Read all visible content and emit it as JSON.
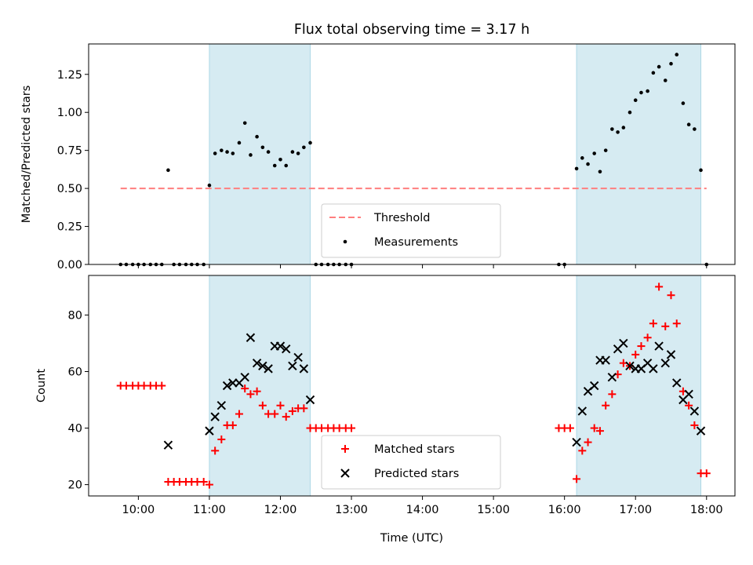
{
  "figure": {
    "title": "Flux total observing time = 3.17 h",
    "xlabel": "Time (UTC)",
    "colors": {
      "span": "#add8e6",
      "threshold": "#ff7f7f",
      "measurements": "#000000",
      "matched": "#ff0000",
      "predicted": "#000000"
    }
  },
  "chart_data": [
    {
      "type": "scatter",
      "title": "Flux total observing time = 3.17 h",
      "xlabel": "",
      "ylabel": "Matched/Predicted stars",
      "x_unit": "hours UTC",
      "xlim": [
        9.3,
        18.4
      ],
      "ylim": [
        0,
        1.45
      ],
      "yticks": [
        0.0,
        0.25,
        0.5,
        0.75,
        1.0,
        1.25
      ],
      "ytick_labels": [
        "0.00",
        "0.25",
        "0.50",
        "0.75",
        "1.00",
        "1.25"
      ],
      "xticks": [
        10,
        11,
        12,
        13,
        14,
        15,
        16,
        17,
        18
      ],
      "xtick_labels": [],
      "legend_placement": "lower-center",
      "shaded_spans": [
        [
          11.0,
          12.42
        ],
        [
          16.17,
          17.92
        ]
      ],
      "threshold": {
        "name": "Threshold",
        "y": 0.5,
        "x_range": [
          9.75,
          18.0
        ]
      },
      "series": [
        {
          "name": "Measurements",
          "points": [
            [
              9.75,
              0
            ],
            [
              9.83,
              0
            ],
            [
              9.92,
              0
            ],
            [
              10.0,
              0
            ],
            [
              10.08,
              0
            ],
            [
              10.17,
              0
            ],
            [
              10.25,
              0
            ],
            [
              10.33,
              0
            ],
            [
              10.42,
              0.62
            ],
            [
              10.5,
              0
            ],
            [
              10.58,
              0
            ],
            [
              10.67,
              0
            ],
            [
              10.75,
              0
            ],
            [
              10.83,
              0
            ],
            [
              10.92,
              0
            ],
            [
              11.0,
              0.52
            ],
            [
              11.08,
              0.73
            ],
            [
              11.17,
              0.75
            ],
            [
              11.25,
              0.74
            ],
            [
              11.33,
              0.73
            ],
            [
              11.42,
              0.8
            ],
            [
              11.5,
              0.93
            ],
            [
              11.58,
              0.72
            ],
            [
              11.67,
              0.84
            ],
            [
              11.75,
              0.77
            ],
            [
              11.83,
              0.74
            ],
            [
              11.92,
              0.65
            ],
            [
              12.0,
              0.69
            ],
            [
              12.08,
              0.65
            ],
            [
              12.17,
              0.74
            ],
            [
              12.25,
              0.73
            ],
            [
              12.33,
              0.77
            ],
            [
              12.42,
              0.8
            ],
            [
              12.5,
              0
            ],
            [
              12.58,
              0
            ],
            [
              12.67,
              0
            ],
            [
              12.75,
              0
            ],
            [
              12.83,
              0
            ],
            [
              12.92,
              0
            ],
            [
              13.0,
              0
            ],
            [
              15.92,
              0
            ],
            [
              16.0,
              0
            ],
            [
              16.17,
              0.63
            ],
            [
              16.25,
              0.7
            ],
            [
              16.33,
              0.66
            ],
            [
              16.42,
              0.73
            ],
            [
              16.5,
              0.61
            ],
            [
              16.58,
              0.75
            ],
            [
              16.67,
              0.89
            ],
            [
              16.75,
              0.87
            ],
            [
              16.83,
              0.9
            ],
            [
              16.92,
              1.0
            ],
            [
              17.0,
              1.08
            ],
            [
              17.08,
              1.13
            ],
            [
              17.17,
              1.14
            ],
            [
              17.25,
              1.26
            ],
            [
              17.33,
              1.3
            ],
            [
              17.42,
              1.21
            ],
            [
              17.5,
              1.32
            ],
            [
              17.58,
              1.38
            ],
            [
              17.67,
              1.06
            ],
            [
              17.75,
              0.92
            ],
            [
              17.83,
              0.89
            ],
            [
              17.92,
              0.62
            ],
            [
              18.0,
              0
            ]
          ]
        }
      ]
    },
    {
      "type": "scatter",
      "title": "",
      "xlabel": "Time (UTC)",
      "ylabel": "Count",
      "x_unit": "hours UTC",
      "xlim": [
        9.3,
        18.4
      ],
      "ylim": [
        16,
        94
      ],
      "yticks": [
        20,
        40,
        60,
        80
      ],
      "ytick_labels": [
        "20",
        "40",
        "60",
        "80"
      ],
      "xticks": [
        10,
        11,
        12,
        13,
        14,
        15,
        16,
        17,
        18
      ],
      "xtick_labels": [
        "10:00",
        "11:00",
        "12:00",
        "13:00",
        "14:00",
        "15:00",
        "16:00",
        "17:00",
        "18:00"
      ],
      "legend_placement": "lower-center",
      "shaded_spans": [
        [
          11.0,
          12.42
        ],
        [
          16.17,
          17.92
        ]
      ],
      "series": [
        {
          "name": "Matched stars",
          "marker": "plus",
          "points": [
            [
              9.75,
              55
            ],
            [
              9.83,
              55
            ],
            [
              9.92,
              55
            ],
            [
              10.0,
              55
            ],
            [
              10.08,
              55
            ],
            [
              10.17,
              55
            ],
            [
              10.25,
              55
            ],
            [
              10.33,
              55
            ],
            [
              10.42,
              21
            ],
            [
              10.5,
              21
            ],
            [
              10.58,
              21
            ],
            [
              10.67,
              21
            ],
            [
              10.75,
              21
            ],
            [
              10.83,
              21
            ],
            [
              10.92,
              21
            ],
            [
              11.0,
              20
            ],
            [
              11.08,
              32
            ],
            [
              11.17,
              36
            ],
            [
              11.25,
              41
            ],
            [
              11.33,
              41
            ],
            [
              11.42,
              45
            ],
            [
              11.5,
              54
            ],
            [
              11.58,
              52
            ],
            [
              11.67,
              53
            ],
            [
              11.75,
              48
            ],
            [
              11.83,
              45
            ],
            [
              11.92,
              45
            ],
            [
              12.0,
              48
            ],
            [
              12.08,
              44
            ],
            [
              12.17,
              46
            ],
            [
              12.25,
              47
            ],
            [
              12.33,
              47
            ],
            [
              12.42,
              40
            ],
            [
              12.5,
              40
            ],
            [
              12.58,
              40
            ],
            [
              12.67,
              40
            ],
            [
              12.75,
              40
            ],
            [
              12.83,
              40
            ],
            [
              12.92,
              40
            ],
            [
              13.0,
              40
            ],
            [
              15.92,
              40
            ],
            [
              16.0,
              40
            ],
            [
              16.08,
              40
            ],
            [
              16.17,
              22
            ],
            [
              16.25,
              32
            ],
            [
              16.33,
              35
            ],
            [
              16.42,
              40
            ],
            [
              16.5,
              39
            ],
            [
              16.58,
              48
            ],
            [
              16.67,
              52
            ],
            [
              16.75,
              59
            ],
            [
              16.83,
              63
            ],
            [
              16.92,
              62
            ],
            [
              17.0,
              66
            ],
            [
              17.08,
              69
            ],
            [
              17.17,
              72
            ],
            [
              17.25,
              77
            ],
            [
              17.33,
              90
            ],
            [
              17.42,
              76
            ],
            [
              17.5,
              87
            ],
            [
              17.58,
              77
            ],
            [
              17.67,
              53
            ],
            [
              17.75,
              48
            ],
            [
              17.83,
              41
            ],
            [
              17.92,
              24
            ],
            [
              18.0,
              24
            ]
          ]
        },
        {
          "name": "Predicted stars",
          "marker": "x",
          "points": [
            [
              10.42,
              34
            ],
            [
              11.0,
              39
            ],
            [
              11.08,
              44
            ],
            [
              11.17,
              48
            ],
            [
              11.25,
              55
            ],
            [
              11.33,
              56
            ],
            [
              11.42,
              56
            ],
            [
              11.5,
              58
            ],
            [
              11.58,
              72
            ],
            [
              11.67,
              63
            ],
            [
              11.75,
              62
            ],
            [
              11.83,
              61
            ],
            [
              11.92,
              69
            ],
            [
              12.0,
              69
            ],
            [
              12.08,
              68
            ],
            [
              12.17,
              62
            ],
            [
              12.25,
              65
            ],
            [
              12.33,
              61
            ],
            [
              12.42,
              50
            ],
            [
              16.17,
              35
            ],
            [
              16.25,
              46
            ],
            [
              16.33,
              53
            ],
            [
              16.42,
              55
            ],
            [
              16.5,
              64
            ],
            [
              16.58,
              64
            ],
            [
              16.67,
              58
            ],
            [
              16.75,
              68
            ],
            [
              16.83,
              70
            ],
            [
              16.92,
              62
            ],
            [
              17.0,
              61
            ],
            [
              17.08,
              61
            ],
            [
              17.17,
              63
            ],
            [
              17.25,
              61
            ],
            [
              17.33,
              69
            ],
            [
              17.42,
              63
            ],
            [
              17.5,
              66
            ],
            [
              17.58,
              56
            ],
            [
              17.67,
              50
            ],
            [
              17.75,
              52
            ],
            [
              17.83,
              46
            ],
            [
              17.92,
              39
            ]
          ]
        }
      ]
    }
  ]
}
